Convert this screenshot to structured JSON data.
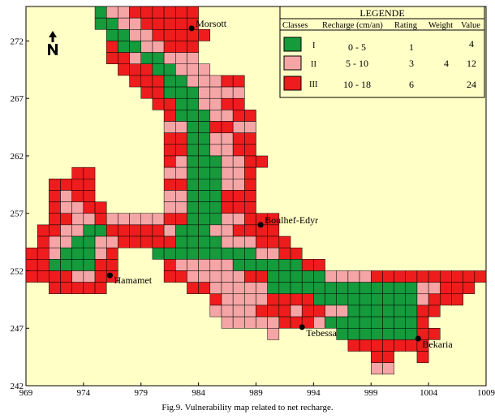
{
  "caption": "Fig.9. Vulnerability map related to net recharge.",
  "colors": {
    "background": "#ffffc6",
    "class_I": "#159a3c",
    "class_II": "#f5a5a5",
    "class_III": "#ee1c1c",
    "grid": "#000000"
  },
  "axes": {
    "x_ticks": [
      "969",
      "974",
      "979",
      "984",
      "989",
      "994",
      "999",
      "1004",
      "1009"
    ],
    "y_ticks": [
      "272",
      "267",
      "262",
      "257",
      "252",
      "247",
      "242"
    ],
    "xlim": [
      969,
      1009
    ],
    "ylim": [
      242,
      275
    ]
  },
  "north_arrow": {
    "label": "N",
    "icon": "north-arrow-icon"
  },
  "towns": [
    {
      "name": "Morsott",
      "x": 983.4,
      "y": 273.1
    },
    {
      "name": "Boulhef-Edyr",
      "x": 989.4,
      "y": 256.0
    },
    {
      "name": "Hamamet",
      "x": 976.3,
      "y": 251.6
    },
    {
      "name": "Tebessa",
      "x": 993.0,
      "y": 247.1
    },
    {
      "name": "Bekaria",
      "x": 1003.1,
      "y": 246.1
    }
  ],
  "legend": {
    "title": "LEGENDE",
    "headers": [
      "Classes",
      "Recharge (cm/an)",
      "Rating",
      "Weight",
      "Value"
    ],
    "rows": [
      {
        "class": "I",
        "recharge": "0 - 5",
        "rating": "1",
        "value": "4",
        "color": "#159a3c"
      },
      {
        "class": "II",
        "recharge": "5 - 10",
        "rating": "3",
        "value": "12",
        "color": "#f5a5a5"
      },
      {
        "class": "III",
        "recharge": "10 - 18",
        "rating": "6",
        "value": "24",
        "color": "#ee1c1c"
      }
    ],
    "weight": "4"
  }
}
